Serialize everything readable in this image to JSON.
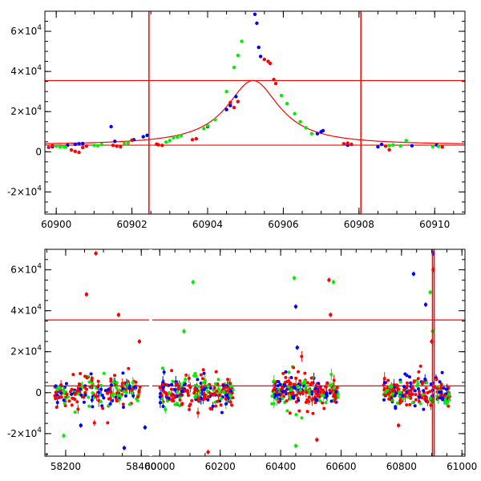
{
  "colors": {
    "blue": "#0000ff",
    "green": "#00ee00",
    "red": "#ff0000",
    "frame": "#000000"
  },
  "chart_data": [
    {
      "id": "top",
      "type": "scatter",
      "title": "",
      "xlabel": "",
      "ylabel": "",
      "xlim": [
        60899.7,
        60910.8
      ],
      "ylim": [
        -31000,
        70000
      ],
      "xticks": [
        60900,
        60902,
        60904,
        60906,
        60908,
        60910
      ],
      "xtick_labels": [
        "60900",
        "60902",
        "60904",
        "60906",
        "60908",
        "60910"
      ],
      "yticks": [
        -20000,
        0,
        20000,
        40000,
        60000
      ],
      "ytick_labels": [
        {
          "base": "-2×10",
          "exp": "4"
        },
        {
          "base": "0",
          "exp": ""
        },
        {
          "base": "2×10",
          "exp": "4"
        },
        {
          "base": "4×10",
          "exp": "4"
        },
        {
          "base": "6×10",
          "exp": "4"
        }
      ],
      "hlines": [
        3300,
        35500
      ],
      "vlines": [
        60902.45,
        60908.05
      ],
      "model_curve": {
        "t0": 60905.2,
        "baseline": 3300,
        "peak": 35500,
        "width": 0.85
      },
      "series": [
        {
          "name": "blue",
          "points": [
            [
              60899.9,
              2500
            ],
            [
              60900.3,
              3300
            ],
            [
              60900.5,
              3700
            ],
            [
              60900.6,
              4000
            ],
            [
              60900.7,
              4100
            ],
            [
              60901.45,
              12500
            ],
            [
              60901.55,
              5200
            ],
            [
              60902.05,
              6000
            ],
            [
              60902.3,
              7500
            ],
            [
              60902.4,
              8200
            ],
            [
              60904.0,
              12500
            ],
            [
              60904.5,
              21000
            ],
            [
              60904.6,
              23000
            ],
            [
              60904.75,
              27500
            ],
            [
              60905.25,
              68500
            ],
            [
              60905.3,
              64000
            ],
            [
              60905.35,
              52000
            ],
            [
              60905.4,
              47500
            ],
            [
              60906.9,
              9000
            ],
            [
              60907.0,
              10000
            ],
            [
              60907.05,
              10500
            ],
            [
              60907.7,
              3300
            ],
            [
              60908.5,
              2500
            ],
            [
              60908.6,
              3700
            ],
            [
              60909.4,
              3000
            ],
            [
              60910.05,
              3400
            ]
          ]
        },
        {
          "name": "green",
          "points": [
            [
              60900.0,
              2800
            ],
            [
              60900.1,
              2400
            ],
            [
              60900.2,
              2600
            ],
            [
              60900.25,
              2300
            ],
            [
              60901.0,
              3200
            ],
            [
              60901.1,
              3000
            ],
            [
              60901.2,
              3600
            ],
            [
              60901.8,
              4200
            ],
            [
              60901.9,
              4400
            ],
            [
              60902.9,
              4800
            ],
            [
              60903.0,
              5600
            ],
            [
              60903.1,
              7000
            ],
            [
              60903.2,
              7400
            ],
            [
              60903.3,
              8000
            ],
            [
              60903.9,
              11500
            ],
            [
              60904.0,
              13000
            ],
            [
              60904.2,
              16000
            ],
            [
              60904.5,
              30000
            ],
            [
              60904.7,
              42000
            ],
            [
              60904.8,
              48000
            ],
            [
              60904.9,
              55000
            ],
            [
              60905.95,
              28000
            ],
            [
              60906.1,
              24000
            ],
            [
              60906.3,
              19000
            ],
            [
              60906.45,
              15000
            ],
            [
              60906.6,
              12000
            ],
            [
              60906.75,
              9000
            ],
            [
              60908.8,
              3100
            ],
            [
              60908.9,
              3400
            ],
            [
              60909.1,
              2900
            ],
            [
              60909.25,
              5600
            ],
            [
              60909.95,
              2600
            ],
            [
              60910.1,
              2700
            ]
          ]
        },
        {
          "name": "red",
          "points": [
            [
              60899.8,
              2200
            ],
            [
              60899.9,
              3000
            ],
            [
              60900.4,
              900
            ],
            [
              60900.5,
              200
            ],
            [
              60900.6,
              -300
            ],
            [
              60900.7,
              2100
            ],
            [
              60900.8,
              2800
            ],
            [
              60901.5,
              3200
            ],
            [
              60901.6,
              2800
            ],
            [
              60901.7,
              2500
            ],
            [
              60902.0,
              5800
            ],
            [
              60902.65,
              3800
            ],
            [
              60902.7,
              3500
            ],
            [
              60902.8,
              3200
            ],
            [
              60903.6,
              6000
            ],
            [
              60903.7,
              6500
            ],
            [
              60904.6,
              24500
            ],
            [
              60904.7,
              22000
            ],
            [
              60904.8,
              25000
            ],
            [
              60905.5,
              46000
            ],
            [
              60905.6,
              45000
            ],
            [
              60905.65,
              44000
            ],
            [
              60905.75,
              36000
            ],
            [
              60905.8,
              34000
            ],
            [
              60907.6,
              4000
            ],
            [
              60907.7,
              4300
            ],
            [
              60907.8,
              3700
            ],
            [
              60908.7,
              2800
            ],
            [
              60908.8,
              1000
            ],
            [
              60910.2,
              2400
            ]
          ]
        }
      ]
    },
    {
      "id": "bottom",
      "type": "scatter",
      "title": "",
      "xlabel": "",
      "ylabel": "",
      "segments": [
        {
          "xlim": [
            58145,
            58425
          ],
          "xticks": [
            58200,
            58400
          ],
          "xtick_labels": [
            "58200",
            "58400"
          ]
        },
        {
          "xlim": [
            59970,
            61010
          ],
          "xticks": [
            60000,
            60200,
            60400,
            60600,
            60800,
            61000
          ],
          "xtick_labels": [
            "60000",
            "60200",
            "60400",
            "60600",
            "60800",
            "61000"
          ]
        }
      ],
      "ylim": [
        -31000,
        70000
      ],
      "yticks": [
        -20000,
        0,
        20000,
        40000,
        60000
      ],
      "ytick_labels": [
        {
          "base": "-2×10",
          "exp": "4"
        },
        {
          "base": "0",
          "exp": ""
        },
        {
          "base": "2×10",
          "exp": "4"
        },
        {
          "base": "4×10",
          "exp": "4"
        },
        {
          "base": "6×10",
          "exp": "4"
        }
      ],
      "hlines": [
        3300,
        35500
      ],
      "vlines": [
        60902.45,
        60908.05
      ],
      "clusters": [
        {
          "x_start": 58170,
          "x_end": 58400,
          "center": 58290,
          "n": 220,
          "spread": 3500,
          "bulge": 9000
        },
        {
          "x_start": 60000,
          "x_end": 60245,
          "center": 60110,
          "n": 240,
          "spread": 5000,
          "bulge": 3000
        },
        {
          "x_start": 60370,
          "x_end": 60590,
          "center": 60460,
          "n": 240,
          "spread": 4500,
          "bulge": 4000
        },
        {
          "x_start": 60740,
          "x_end": 60960,
          "center": 60880,
          "n": 220,
          "spread": 4000,
          "bulge": 3500
        }
      ],
      "outliers": [
        {
          "x": 58195,
          "y": -21000,
          "series": "green"
        },
        {
          "x": 58255,
          "y": 48000,
          "series": "red"
        },
        {
          "x": 58280,
          "y": 68000,
          "series": "red"
        },
        {
          "x": 58340,
          "y": 38000,
          "series": "red"
        },
        {
          "x": 58355,
          "y": -27000,
          "series": "blue"
        },
        {
          "x": 58410,
          "y": -17000,
          "series": "blue"
        },
        {
          "x": 58395,
          "y": 25000,
          "series": "red"
        },
        {
          "x": 58240,
          "y": -16000,
          "series": "blue"
        },
        {
          "x": 60110,
          "y": 54000,
          "series": "green"
        },
        {
          "x": 60080,
          "y": 30000,
          "series": "green"
        },
        {
          "x": 60160,
          "y": -29000,
          "series": "red"
        },
        {
          "x": 60445,
          "y": 56000,
          "series": "green"
        },
        {
          "x": 60450,
          "y": 42000,
          "series": "blue"
        },
        {
          "x": 60455,
          "y": 22000,
          "series": "blue"
        },
        {
          "x": 60560,
          "y": 55000,
          "series": "red"
        },
        {
          "x": 60575,
          "y": 54000,
          "series": "green"
        },
        {
          "x": 60565,
          "y": 38000,
          "series": "red"
        },
        {
          "x": 60840,
          "y": 58000,
          "series": "blue"
        },
        {
          "x": 60880,
          "y": 43000,
          "series": "blue"
        },
        {
          "x": 60895,
          "y": 49000,
          "series": "green"
        },
        {
          "x": 60905,
          "y": 68000,
          "series": "blue"
        },
        {
          "x": 60905,
          "y": 60000,
          "series": "red"
        },
        {
          "x": 60903,
          "y": 30000,
          "series": "green"
        },
        {
          "x": 60900,
          "y": 25000,
          "series": "red"
        },
        {
          "x": 60790,
          "y": -16000,
          "series": "red"
        },
        {
          "x": 60450,
          "y": -26000,
          "series": "green"
        },
        {
          "x": 60520,
          "y": -23000,
          "series": "red"
        }
      ]
    }
  ]
}
